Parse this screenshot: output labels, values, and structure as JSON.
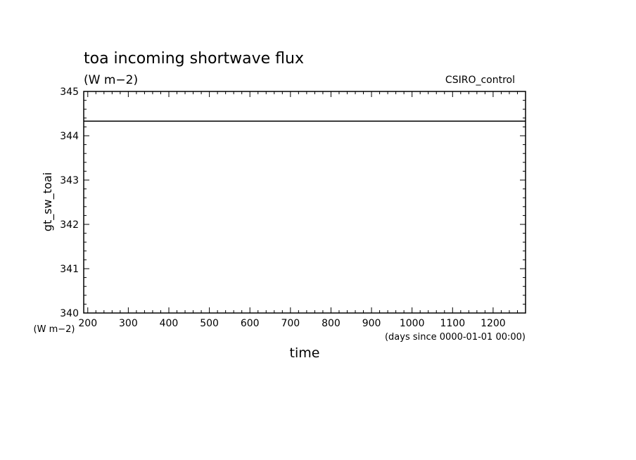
{
  "chart_data": {
    "type": "line",
    "title": "toa incoming shortwave flux",
    "subtitle": "(W m−2)",
    "run_label": "CSIRO_control",
    "xlabel": "time",
    "x_units": "(days since 0000-01-01 00:00)",
    "ylabel": "gt_sw_toai",
    "y_units": "(W m−2)",
    "xlim": [
      190,
      1280
    ],
    "ylim": [
      340,
      345
    ],
    "x_ticks": [
      200,
      300,
      400,
      500,
      600,
      700,
      800,
      900,
      1000,
      1100,
      1200
    ],
    "y_ticks": [
      340,
      341,
      342,
      343,
      344,
      345
    ],
    "grid": false,
    "series": [
      {
        "x": [
          190,
          1280
        ],
        "y": [
          344.33,
          344.33
        ],
        "color": "#000000"
      }
    ]
  }
}
